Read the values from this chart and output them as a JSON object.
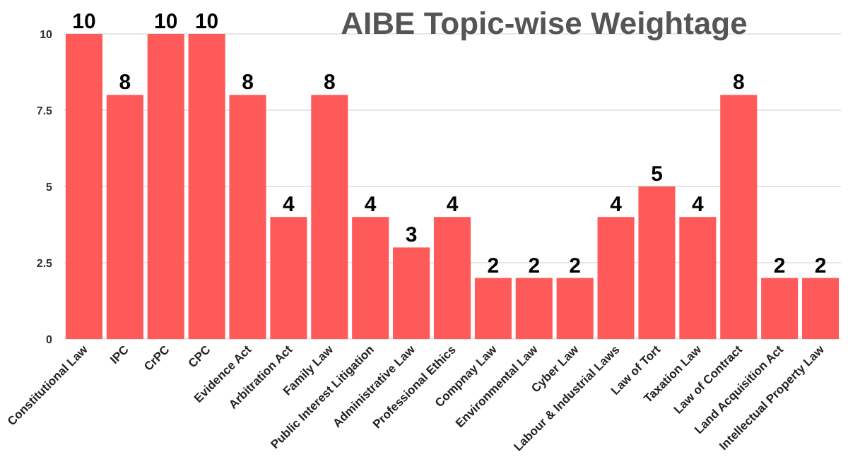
{
  "chart_data": {
    "type": "bar",
    "title": "AIBE Topic-wise Weightage",
    "categories": [
      "Constitutional Law",
      "IPC",
      "CrPC",
      "CPC",
      "Evidence Act",
      "Arbitration Act",
      "Family Law",
      "Public Interest Litigation",
      "Administrative Law",
      "Professional Ethics",
      "Compnay Law",
      "Environmental Law",
      "Cyber Law",
      "Labour & Industrial Laws",
      "Law of Tort",
      "Taxation Law",
      "Law of Contract",
      "Land Acquisition Act",
      "Intellectual Property Law"
    ],
    "values": [
      10,
      8,
      10,
      10,
      8,
      4,
      8,
      4,
      3,
      4,
      2,
      2,
      2,
      4,
      5,
      4,
      8,
      2,
      2
    ],
    "color": "#ff5a5a",
    "ylim": [
      0,
      10
    ],
    "yticks": [
      0,
      2.5,
      5,
      7.5,
      10
    ],
    "grid": "y",
    "data_labels": true
  }
}
